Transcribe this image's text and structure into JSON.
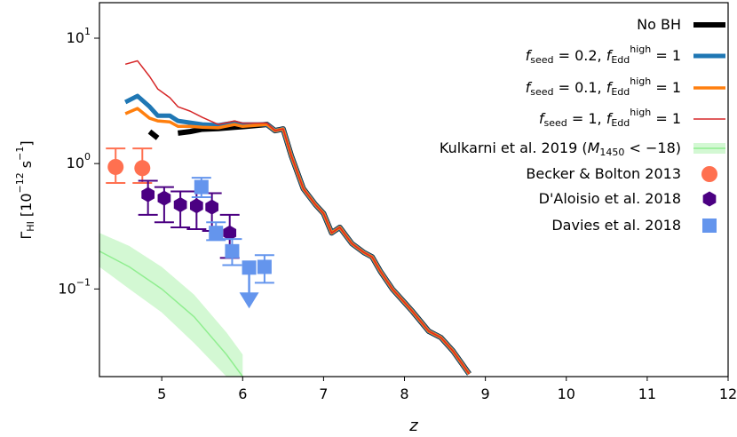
{
  "chart_data": {
    "type": "line",
    "x_label": "z",
    "y_label": "Γ_{HI} [10^{−12} s^{−1}]",
    "log_y": true,
    "xlim": [
      4.23,
      12
    ],
    "ylim": [
      0.02,
      19.2
    ],
    "xticks": [
      5,
      6,
      7,
      8,
      9,
      10,
      11,
      12
    ],
    "yticks": [
      {
        "value": 0.1,
        "label": "10^{−1}"
      },
      {
        "value": 1,
        "label": "10^{0}"
      },
      {
        "value": 10,
        "label": "10^{1}"
      }
    ],
    "legend": "upper right",
    "x": [
      4.55,
      4.7,
      4.85,
      4.95,
      5.1,
      5.2,
      5.35,
      5.5,
      5.7,
      5.9,
      6.0,
      6.3,
      6.4,
      6.5,
      6.6,
      6.75,
      6.9,
      7.0,
      7.1,
      7.2,
      7.35,
      7.5,
      7.6,
      7.7,
      7.85,
      8.0,
      8.1,
      8.3,
      8.45,
      8.6,
      8.8
    ],
    "series": [
      {
        "name": "No BH",
        "color": "#000000",
        "width": 6,
        "values": [
          null,
          null,
          1.8,
          1.6,
          null,
          1.75,
          1.8,
          1.88,
          1.9,
          1.95,
          1.97,
          2.05,
          1.83,
          1.89,
          1.16,
          0.63,
          0.47,
          0.4,
          0.28,
          0.31,
          0.23,
          0.195,
          0.18,
          0.139,
          0.1,
          0.078,
          0.066,
          0.046,
          0.041,
          0.032,
          0.021
        ]
      },
      {
        "name": "f_{seed} = 0.2, f_{Edd}^{high} = 1",
        "color": "#1f77b4",
        "width": 5,
        "values": [
          3.09,
          3.46,
          2.84,
          2.41,
          2.41,
          2.19,
          2.12,
          2.05,
          2.02,
          2.12,
          2.05,
          2.05,
          1.83,
          1.89,
          1.16,
          0.63,
          0.47,
          0.4,
          0.28,
          0.31,
          0.23,
          0.195,
          0.18,
          0.139,
          0.1,
          0.078,
          0.066,
          0.046,
          0.041,
          0.032,
          0.021
        ]
      },
      {
        "name": "f_{seed} = 0.1, f_{Edd}^{high} = 1",
        "color": "#ff7f0e",
        "width": 3.5,
        "values": [
          2.5,
          2.75,
          2.3,
          2.19,
          2.15,
          1.98,
          1.98,
          1.95,
          1.93,
          2.05,
          1.98,
          2.05,
          1.83,
          1.89,
          1.16,
          0.63,
          0.47,
          0.4,
          0.28,
          0.31,
          0.23,
          0.195,
          0.18,
          0.139,
          0.1,
          0.078,
          0.066,
          0.046,
          0.041,
          0.032,
          0.021
        ]
      },
      {
        "name": "f_{seed} = 1, f_{Edd}^{high} = 1",
        "color": "#d62728",
        "width": 1.5,
        "values": [
          6.2,
          6.6,
          4.95,
          3.94,
          3.35,
          2.84,
          2.62,
          2.34,
          2.05,
          2.19,
          2.1,
          2.1,
          1.83,
          1.89,
          1.16,
          0.63,
          0.47,
          0.4,
          0.28,
          0.31,
          0.23,
          0.195,
          0.18,
          0.139,
          0.1,
          0.078,
          0.066,
          0.046,
          0.041,
          0.032,
          0.021
        ]
      }
    ],
    "band": {
      "name": "Kulkarni et al. 2019 (M_{1450} < −18)",
      "color": "#90ee90",
      "x": [
        4.23,
        4.6,
        5.0,
        5.4,
        5.8,
        6.0
      ],
      "values": [
        0.2,
        0.15,
        0.1,
        0.06,
        0.03,
        0.02
      ],
      "upper": [
        0.28,
        0.22,
        0.15,
        0.09,
        0.045,
        0.03
      ],
      "lower": [
        0.15,
        0.1,
        0.065,
        0.037,
        0.02,
        0.015
      ]
    },
    "points": [
      {
        "name": "Becker & Bolton 2013",
        "color": "#ff7050",
        "marker": "circle",
        "x": [
          4.43,
          4.76
        ],
        "values": [
          0.94,
          0.92
        ],
        "lower": [
          0.7,
          0.7
        ],
        "upper": [
          1.32,
          1.32
        ]
      },
      {
        "name": "D'Aloisio et al. 2018",
        "color": "#4b0082",
        "marker": "hexagon",
        "x": [
          4.83,
          5.03,
          5.23,
          5.43,
          5.62,
          5.84
        ],
        "values": [
          0.565,
          0.53,
          0.47,
          0.46,
          0.45,
          0.28
        ],
        "lower": [
          0.39,
          0.34,
          0.31,
          0.3,
          0.29,
          0.177
        ],
        "upper": [
          0.73,
          0.65,
          0.6,
          0.6,
          0.58,
          0.39
        ]
      },
      {
        "name": "Davies et al. 2018",
        "color": "#6495ed",
        "marker": "square",
        "x": [
          5.49,
          5.67,
          5.87,
          6.08,
          6.27
        ],
        "values": [
          0.65,
          0.28,
          0.2,
          0.148,
          0.15
        ],
        "lower": [
          0.54,
          0.245,
          0.155,
          null,
          0.112
        ],
        "upper": [
          0.77,
          0.34,
          0.25,
          null,
          0.186
        ],
        "upper_limit": [
          false,
          false,
          false,
          true,
          false
        ]
      }
    ]
  }
}
